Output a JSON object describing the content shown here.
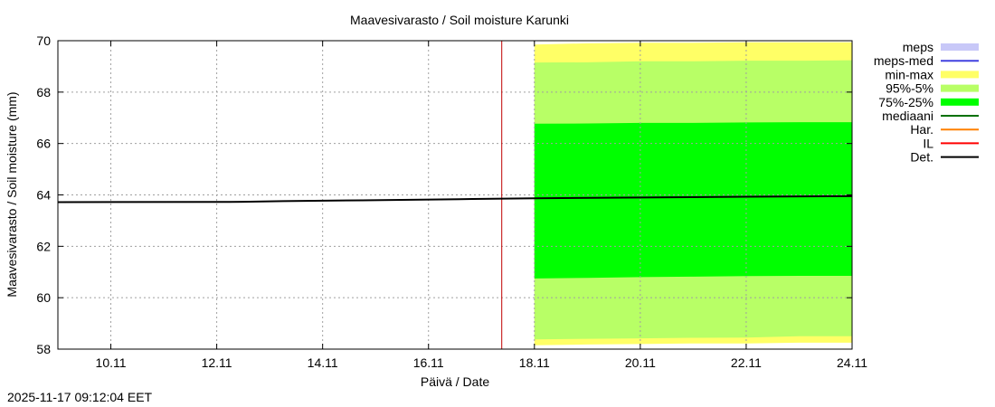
{
  "chart_data": {
    "type": "area",
    "title": "Maavesivarasto / Soil moisture   Karunki",
    "xlabel": "Päivä / Date",
    "ylabel": "Maavesivarasto / Soil moisture (mm)",
    "xlim": [
      "2025-11-09T00:00",
      "2025-11-24T00:00"
    ],
    "ylim": [
      58,
      70
    ],
    "xticks": [
      "10.11",
      "12.11",
      "14.11",
      "16.11",
      "18.11",
      "20.11",
      "22.11",
      "24.11"
    ],
    "xtick_dates": [
      "2025-11-10",
      "2025-11-12",
      "2025-11-14",
      "2025-11-16",
      "2025-11-18",
      "2025-11-20",
      "2025-11-22",
      "2025-11-24"
    ],
    "yticks": [
      58,
      60,
      62,
      64,
      66,
      68,
      70
    ],
    "grid": true,
    "legend_position": "right",
    "forecast_start_marker": "2025-11-17T09:12",
    "legend": [
      {
        "label": "meps",
        "color": "#c8c8f8",
        "style": "band"
      },
      {
        "label": "meps-med",
        "color": "#4040e0",
        "style": "line"
      },
      {
        "label": "min-max",
        "color": "#ffff66",
        "style": "band"
      },
      {
        "label": "95%-5%",
        "color": "#b8ff66",
        "style": "band"
      },
      {
        "label": "75%-25%",
        "color": "#00ff00",
        "style": "band"
      },
      {
        "label": "mediaani",
        "color": "#007000",
        "style": "line"
      },
      {
        "label": "Har.",
        "color": "#ff8000",
        "style": "line"
      },
      {
        "label": "IL",
        "color": "#ff0000",
        "style": "line"
      },
      {
        "label": "Det.",
        "color": "#000000",
        "style": "line"
      }
    ],
    "bands_x": [
      "2025-11-18T00:00",
      "2025-11-19T00:00",
      "2025-11-20T00:00",
      "2025-11-21T00:00",
      "2025-11-22T00:00",
      "2025-11-23T00:00",
      "2025-11-24T00:00"
    ],
    "series": [
      {
        "name": "min-max",
        "upper": [
          69.85,
          69.9,
          69.92,
          69.92,
          69.94,
          69.94,
          69.94
        ],
        "lower": [
          58.15,
          58.18,
          58.2,
          58.22,
          58.22,
          58.25,
          58.25
        ]
      },
      {
        "name": "95%-5%",
        "upper": [
          69.15,
          69.16,
          69.2,
          69.2,
          69.22,
          69.22,
          69.24
        ],
        "lower": [
          58.38,
          58.4,
          58.42,
          58.44,
          58.45,
          58.5,
          58.5
        ]
      },
      {
        "name": "75%-25%",
        "upper": [
          66.77,
          66.78,
          66.8,
          66.8,
          66.82,
          66.83,
          66.83
        ],
        "lower": [
          60.75,
          60.77,
          60.8,
          60.82,
          60.84,
          60.85,
          60.85
        ]
      },
      {
        "name": "Det.",
        "x": [
          "2025-11-09T00:00",
          "2025-11-12T12:00",
          "2025-11-13T06:00",
          "2025-11-14T18:00",
          "2025-11-16T20:00",
          "2025-11-18T00:00",
          "2025-11-20T00:00",
          "2025-11-22T00:00",
          "2025-11-24T00:00"
        ],
        "y": [
          63.72,
          63.73,
          63.76,
          63.79,
          63.84,
          63.87,
          63.9,
          63.93,
          63.95
        ]
      }
    ]
  },
  "timestamp": "2025-11-17 09:12:04 EET"
}
